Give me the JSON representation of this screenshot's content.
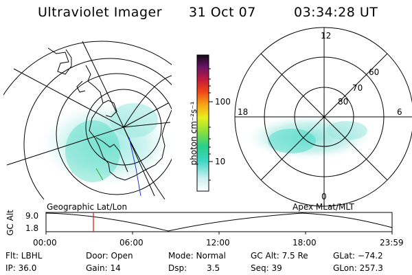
{
  "header": {
    "instrument": "Ultraviolet Imager",
    "date": "31 Oct 07",
    "time": "03:34:28 UT"
  },
  "colorbar": {
    "unit_label": "photon cm⁻²s⁻¹",
    "tick_labels": [
      "100",
      "10"
    ]
  },
  "polar_plot": {
    "mlt_labels": [
      "12",
      "18",
      "6",
      "0"
    ],
    "lat_labels": [
      "60",
      "70",
      "80"
    ]
  },
  "altitude_strip": {
    "axis_title": "GC Alt",
    "y_ticks": [
      "9.0",
      "1.8"
    ],
    "left_title": "Geographic Lat/Lon",
    "right_title": "Apex MLat/MLT",
    "x_ticks": [
      "00:00",
      "06:00",
      "12:00",
      "18:00",
      "23:59"
    ],
    "marker_time": "03:34",
    "marker_color": "#dd2222"
  },
  "info_panel": {
    "row1": [
      "Flt: LBHL",
      "Door: Open",
      "Mode: Normal",
      "GC Alt: 7.5 Re",
      "GLat: −74.2"
    ],
    "row2": [
      "IP: 36.0",
      "Gain: 14",
      "Dsp:",
      "3.5",
      "Seq: 39",
      "GLon: 257.3"
    ]
  }
}
